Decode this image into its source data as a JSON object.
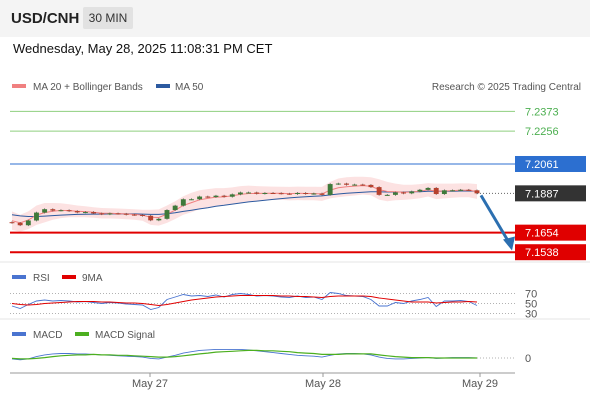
{
  "header": {
    "symbol": "USD/CNH",
    "timeframe": "30 MIN",
    "timestamp": "Wednesday, May 28, 2025 11:08:31 PM CET"
  },
  "main_panel": {
    "legend": [
      {
        "label": "MA 20 + Bollinger Bands",
        "color": "#f08080"
      },
      {
        "label": "MA 50",
        "color": "#2c5aa0"
      }
    ],
    "copyright": "Research © 2025 Trading Central"
  },
  "rsi_panel": {
    "legend": [
      {
        "label": "RSI",
        "color": "#4a74d0"
      },
      {
        "label": "9MA",
        "color": "#e00000"
      }
    ],
    "levels": [
      "70",
      "50",
      "30"
    ]
  },
  "macd_panel": {
    "legend": [
      {
        "label": "MACD",
        "color": "#4a74d0"
      },
      {
        "label": "MACD Signal",
        "color": "#4caf20"
      }
    ],
    "zero_label": "0"
  },
  "chart_data": {
    "type": "candlestick",
    "x_labels": [
      "May 27",
      "May 28",
      "May 29"
    ],
    "ylim": [
      7.148,
      7.247
    ],
    "price_levels": [
      {
        "label": "7.2373",
        "value": 7.2373,
        "style": "resistance",
        "color": "#8fcf7f",
        "tag": false
      },
      {
        "label": "7.2256",
        "value": 7.2256,
        "style": "resistance",
        "color": "#8fcf7f",
        "tag": false
      },
      {
        "label": "7.2061",
        "value": 7.2061,
        "style": "pivot",
        "color": "#2c6fd0",
        "tag": true
      },
      {
        "label": "7.1654",
        "value": 7.1654,
        "style": "support",
        "color": "#e00000",
        "tag": true
      },
      {
        "label": "7.1538",
        "value": 7.1538,
        "style": "support",
        "color": "#e00000",
        "tag": true
      }
    ],
    "last_price": {
      "label": "7.1887",
      "value": 7.1887,
      "color": "#333333"
    },
    "forecast_arrow": {
      "from": 7.1887,
      "to": 7.156,
      "color": "#2c6fb0"
    },
    "close": [
      7.1712,
      7.1698,
      7.1726,
      7.1773,
      7.1793,
      7.1785,
      7.1787,
      7.1782,
      7.1774,
      7.1776,
      7.1768,
      7.1763,
      7.1768,
      7.1766,
      7.1761,
      7.1759,
      7.1754,
      7.1727,
      7.1736,
      7.1788,
      7.1814,
      7.1852,
      7.1852,
      7.1868,
      7.1865,
      7.1873,
      7.1867,
      7.1881,
      7.1892,
      7.1892,
      7.1885,
      7.1889,
      7.1888,
      7.1885,
      7.1883,
      7.1889,
      7.1884,
      7.1886,
      7.1878,
      7.1942,
      7.1945,
      7.1938,
      7.1939,
      7.1937,
      7.1924,
      7.1878,
      7.1878,
      7.1892,
      7.1887,
      7.1898,
      7.1908,
      7.1919,
      7.1883,
      7.1905,
      7.1905,
      7.1908,
      7.1905,
      7.1887
    ],
    "ma20": [
      7.1725,
      7.1712,
      7.1729,
      7.1758,
      7.1773,
      7.1781,
      7.1786,
      7.1785,
      7.1781,
      7.1779,
      7.1775,
      7.177,
      7.1769,
      7.1767,
      7.1765,
      7.1762,
      7.1758,
      7.1745,
      7.1744,
      7.1764,
      7.1787,
      7.1815,
      7.1832,
      7.1849,
      7.1857,
      7.1865,
      7.1866,
      7.1873,
      7.1881,
      7.1886,
      7.1886,
      7.1887,
      7.1888,
      7.1887,
      7.1885,
      7.1887,
      7.1886,
      7.1886,
      7.1883,
      7.1906,
      7.192,
      7.1926,
      7.193,
      7.1933,
      7.1929,
      7.191,
      7.1898,
      7.1896,
      7.1893,
      7.1895,
      7.19,
      7.1908,
      7.1899,
      7.1901,
      7.1903,
      7.1905,
      7.1905,
      7.1898
    ],
    "bb_upper": [
      7.178,
      7.176,
      7.178,
      7.1815,
      7.183,
      7.183,
      7.1828,
      7.1822,
      7.1815,
      7.181,
      7.1805,
      7.18,
      7.1799,
      7.1797,
      7.1795,
      7.1793,
      7.179,
      7.179,
      7.1792,
      7.1815,
      7.184,
      7.187,
      7.189,
      7.1905,
      7.1912,
      7.1918,
      7.1918,
      7.1922,
      7.193,
      7.1933,
      7.193,
      7.1928,
      7.1927,
      7.1926,
      7.1925,
      7.1927,
      7.1926,
      7.1926,
      7.1925,
      7.1955,
      7.1975,
      7.1982,
      7.1985,
      7.1985,
      7.1982,
      7.197,
      7.1955,
      7.1945,
      7.1938,
      7.1938,
      7.1942,
      7.1948,
      7.1945,
      7.1945,
      7.1945,
      7.1946,
      7.1946,
      7.1942
    ],
    "bb_lower": [
      7.167,
      7.166,
      7.1675,
      7.17,
      7.1715,
      7.173,
      7.174,
      7.1745,
      7.1745,
      7.1745,
      7.1742,
      7.1738,
      7.1738,
      7.1736,
      7.1734,
      7.173,
      7.1725,
      7.17,
      7.1696,
      7.1712,
      7.1735,
      7.176,
      7.1775,
      7.1793,
      7.1802,
      7.1812,
      7.1815,
      7.1825,
      7.1832,
      7.1838,
      7.1842,
      7.1846,
      7.1849,
      7.1848,
      7.1845,
      7.1847,
      7.1846,
      7.1846,
      7.1842,
      7.1857,
      7.1865,
      7.187,
      7.1874,
      7.188,
      7.1876,
      7.185,
      7.184,
      7.1846,
      7.1848,
      7.1852,
      7.1858,
      7.1868,
      7.1853,
      7.1857,
      7.1861,
      7.1864,
      7.1864,
      7.1854
    ],
    "ma50": [
      7.176,
      7.1753,
      7.175,
      7.175,
      7.1752,
      7.1755,
      7.1758,
      7.176,
      7.1762,
      7.1763,
      7.1764,
      7.1764,
      7.1765,
      7.1765,
      7.1765,
      7.1765,
      7.1764,
      7.1762,
      7.1762,
      7.1766,
      7.1772,
      7.178,
      7.1787,
      7.1795,
      7.1802,
      7.181,
      7.1816,
      7.1823,
      7.183,
      7.1836,
      7.1841,
      7.1846,
      7.1851,
      7.1856,
      7.186,
      7.1864,
      7.1867,
      7.187,
      7.1872,
      7.1878,
      7.1883,
      7.1887,
      7.1891,
      7.1894,
      7.1896,
      7.1896,
      7.1895,
      7.1895,
      7.1895,
      7.1896,
      7.1897,
      7.1899,
      7.1899,
      7.19,
      7.19,
      7.1901,
      7.1901,
      7.19
    ],
    "rsi": [
      45,
      40,
      48,
      55,
      57,
      55,
      56,
      55,
      53,
      54,
      52,
      50,
      52,
      51,
      49,
      48,
      47,
      38,
      42,
      58,
      63,
      68,
      65,
      66,
      64,
      67,
      63,
      68,
      70,
      68,
      65,
      66,
      65,
      63,
      62,
      65,
      62,
      63,
      58,
      72,
      70,
      66,
      65,
      64,
      58,
      45,
      45,
      52,
      50,
      55,
      58,
      62,
      44,
      55,
      55,
      56,
      54,
      46
    ],
    "rsi_ma": [
      50,
      48,
      47,
      48,
      50,
      51,
      52,
      53,
      54,
      54,
      54,
      53,
      53,
      52,
      51,
      51,
      50,
      48,
      46,
      48,
      51,
      54,
      57,
      59,
      61,
      63,
      64,
      65,
      66,
      66,
      66,
      66,
      66,
      65,
      65,
      64,
      64,
      63,
      62,
      64,
      65,
      65,
      65,
      65,
      64,
      61,
      59,
      57,
      55,
      53,
      53,
      53,
      51,
      52,
      53,
      53,
      54,
      53
    ],
    "macd": [
      -0.0002,
      -0.0004,
      -0.0002,
      0.0003,
      0.0007,
      0.0009,
      0.001,
      0.001,
      0.0009,
      0.0009,
      0.0008,
      0.0007,
      0.0006,
      0.0005,
      0.0004,
      0.0003,
      0.0002,
      -0.0001,
      -0.0002,
      0.0002,
      0.0006,
      0.0011,
      0.0014,
      0.0017,
      0.0018,
      0.0019,
      0.0019,
      0.0019,
      0.0019,
      0.0018,
      0.0016,
      0.0014,
      0.0012,
      0.001,
      0.0008,
      0.0006,
      0.0005,
      0.0004,
      0.0002,
      0.0006,
      0.0009,
      0.001,
      0.001,
      0.0009,
      0.0007,
      0.0002,
      -0.0001,
      -0.0002,
      -0.0002,
      -0.0001,
      0.0,
      0.0001,
      -0.0001,
      0.0,
      0.0001,
      0.0001,
      0.0001,
      0.0
    ],
    "macd_signal": [
      -0.0001,
      -0.0002,
      -0.0002,
      -0.0001,
      0.0001,
      0.0003,
      0.0005,
      0.0006,
      0.0007,
      0.0007,
      0.0008,
      0.0007,
      0.0007,
      0.0006,
      0.0006,
      0.0005,
      0.0004,
      0.0003,
      0.0002,
      0.0002,
      0.0003,
      0.0005,
      0.0007,
      0.0009,
      0.0011,
      0.0013,
      0.0014,
      0.0015,
      0.0016,
      0.0017,
      0.0017,
      0.0016,
      0.0016,
      0.0015,
      0.0014,
      0.0012,
      0.0011,
      0.001,
      0.0008,
      0.0008,
      0.0008,
      0.0009,
      0.0009,
      0.0009,
      0.0009,
      0.0007,
      0.0005,
      0.0003,
      0.0002,
      0.0001,
      0.0001,
      0.0001,
      0.0,
      0.0,
      0.0,
      0.0,
      0.0,
      0.0
    ]
  }
}
